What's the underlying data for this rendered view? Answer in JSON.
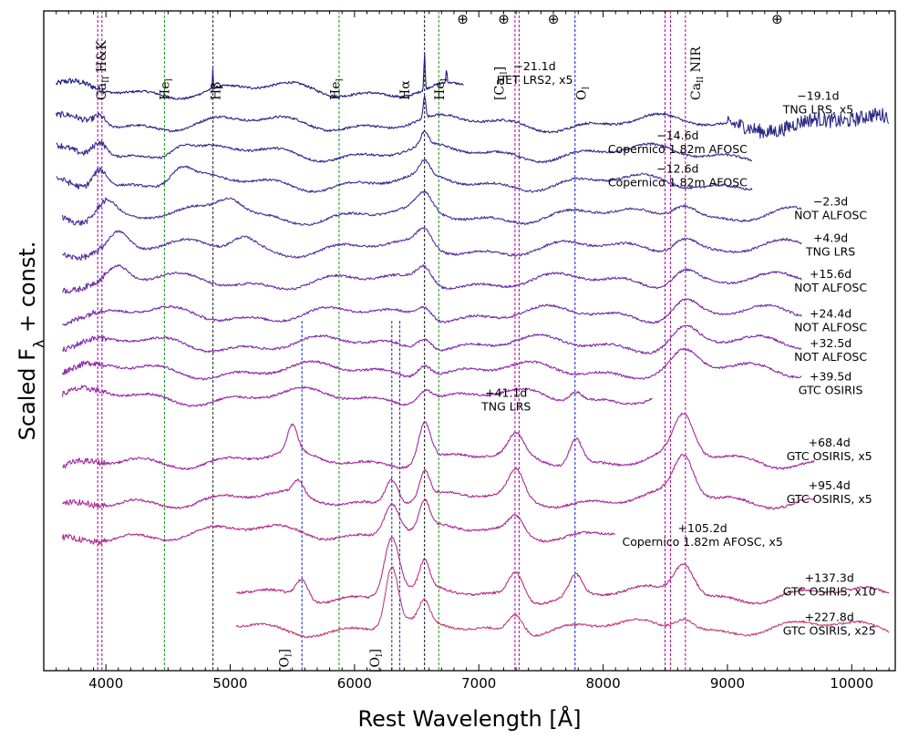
{
  "chart_data": {
    "type": "line",
    "title": "",
    "xlabel": "Rest Wavelength [Å]",
    "ylabel": "Scaled F_λ + const.",
    "xlim": [
      3500,
      10350
    ],
    "ylim": [
      0,
      100
    ],
    "xticks": [
      4000,
      5000,
      6000,
      7000,
      8000,
      9000,
      10000
    ],
    "xtick_labels": [
      "4000",
      "5000",
      "6000",
      "7000",
      "8000",
      "9000",
      "10000"
    ],
    "line_markers": [
      {
        "name": "Ca II H&K",
        "waves": [
          3934,
          3968
        ],
        "color": "#b0179b",
        "label_wave": 4000,
        "label_type": "caii_hk"
      },
      {
        "name": "He I",
        "waves": [
          4471
        ],
        "color": "#2a9d2a",
        "label_wave": 4510,
        "label_type": "hei"
      },
      {
        "name": "Hβ",
        "waves": [
          4861
        ],
        "color": "#333333",
        "label_wave": 4920,
        "label_type": "hbeta"
      },
      {
        "name": "He I",
        "waves": [
          5876
        ],
        "color": "#2a9d2a",
        "label_wave": 5880,
        "label_type": "hei"
      },
      {
        "name": "Hα",
        "waves": [
          6563
        ],
        "color": "#222222",
        "label_wave": 6440,
        "label_type": "halpha"
      },
      {
        "name": "He I",
        "waves": [
          6678
        ],
        "color": "#2a9d2a",
        "label_wave": 6720,
        "label_type": "hei"
      },
      {
        "name": "[Ca II]",
        "waves": [
          7291,
          7324
        ],
        "color": "#b0179b",
        "label_wave": 7200,
        "label_type": "caii_forb"
      },
      {
        "name": "O I",
        "waves": [
          7774
        ],
        "color": "#1f2fd0",
        "label_wave": 7860,
        "label_type": "oi"
      },
      {
        "name": "Ca II NIR",
        "waves": [
          8498,
          8542,
          8662
        ],
        "color": "#b0179b",
        "label_wave": 8780,
        "label_type": "caii_nir"
      },
      {
        "name": "[O I]",
        "waves": [
          5577
        ],
        "color": "#1f2fd0",
        "label_wave": 5470,
        "label_type": "oi_forb_bottom",
        "y_from": 53
      },
      {
        "name": "[O I]",
        "waves": [
          6300,
          6364
        ],
        "color": "#1f2fd0",
        "label_wave": 6200,
        "label_type": "oi_forb_bottom",
        "y_from": 53
      }
    ],
    "telluric_symbol": "⊕",
    "telluric_waves": [
      6870,
      7200,
      7600,
      9400
    ],
    "series": [
      {
        "name": "−21.1d",
        "instrument": "HET LRS2, x5",
        "range": [
          3600,
          6880
        ],
        "offset": 88,
        "color": "#1b1e7c",
        "label_wave": 7450,
        "label_y": 91,
        "features": [
          [
            6563,
            5.5,
            5
          ],
          [
            4861,
            3,
            3
          ],
          [
            6740,
            2,
            5
          ]
        ]
      },
      {
        "name": "−19.1d",
        "instrument": "TNG LRS, x5",
        "range": [
          3600,
          10300
        ],
        "offset": 83,
        "color": "#2b2785",
        "label_wave": 9730,
        "label_y": 86.5,
        "features": [
          [
            3950,
            1.6,
            50
          ],
          [
            6563,
            3.5,
            10
          ]
        ]
      },
      {
        "name": "−14.6d",
        "instrument": "Copernico 1.82m AFOSC",
        "range": [
          3600,
          9200
        ],
        "offset": 78.5,
        "color": "#362a8c",
        "label_wave": 8600,
        "label_y": 80.5,
        "features": [
          [
            3950,
            2.5,
            60
          ],
          [
            4600,
            1.5,
            80
          ],
          [
            6563,
            2,
            30
          ]
        ]
      },
      {
        "name": "−12.6d",
        "instrument": "Copernico 1.82m AFOSC",
        "range": [
          3600,
          9200
        ],
        "offset": 74,
        "color": "#412e92",
        "label_wave": 8600,
        "label_y": 75.5,
        "features": [
          [
            3950,
            3,
            60
          ],
          [
            4600,
            2,
            80
          ],
          [
            6563,
            2,
            40
          ]
        ]
      },
      {
        "name": "−2.3d",
        "instrument": "NOT ALFOSC",
        "range": [
          3650,
          9600
        ],
        "offset": 69,
        "color": "#4c3198",
        "label_wave": 9830,
        "label_y": 70.5,
        "features": [
          [
            4000,
            3,
            80
          ],
          [
            5000,
            2.5,
            100
          ],
          [
            6563,
            2.5,
            60
          ],
          [
            8650,
            2.5,
            100
          ]
        ]
      },
      {
        "name": "+4.9d",
        "instrument": "TNG LRS",
        "range": [
          3650,
          9600
        ],
        "offset": 64,
        "color": "#5a2f9c",
        "label_wave": 9830,
        "label_y": 65,
        "features": [
          [
            4100,
            2.5,
            80
          ],
          [
            5100,
            2,
            100
          ],
          [
            6563,
            2.5,
            60
          ],
          [
            8650,
            2.5,
            100
          ]
        ]
      },
      {
        "name": "+15.6d",
        "instrument": "NOT ALFOSC",
        "range": [
          3650,
          9600
        ],
        "offset": 59,
        "color": "#6a2ea2",
        "label_wave": 9830,
        "label_y": 59.5,
        "features": [
          [
            4100,
            2,
            80
          ],
          [
            6563,
            2.5,
            60
          ],
          [
            8650,
            2.5,
            100
          ]
        ]
      },
      {
        "name": "+24.4d",
        "instrument": "NOT ALFOSC",
        "range": [
          3650,
          9600
        ],
        "offset": 54,
        "color": "#762da6",
        "label_wave": 9830,
        "label_y": 53.5,
        "features": [
          [
            6563,
            2,
            60
          ],
          [
            8650,
            2.5,
            100
          ]
        ]
      },
      {
        "name": "+32.5d",
        "instrument": "NOT ALFOSC",
        "range": [
          3650,
          9600
        ],
        "offset": 49.5,
        "color": "#822ca9",
        "label_wave": 9830,
        "label_y": 49,
        "features": [
          [
            6563,
            2,
            60
          ],
          [
            8650,
            2.5,
            100
          ]
        ]
      },
      {
        "name": "+39.5d",
        "instrument": "GTC OSIRIS",
        "range": [
          3650,
          9600
        ],
        "offset": 45.5,
        "color": "#8c2aa8",
        "label_wave": 9830,
        "label_y": 44,
        "features": [
          [
            6563,
            2,
            60
          ],
          [
            8650,
            2.5,
            100
          ]
        ]
      },
      {
        "name": "+41.1d",
        "instrument": "TNG LRS",
        "range": [
          3650,
          8400
        ],
        "offset": 41.5,
        "color": "#952aa4",
        "label_wave": 7220,
        "label_y": 41.5,
        "features": [
          [
            6563,
            2,
            60
          ],
          [
            7780,
            1.5,
            50
          ]
        ]
      },
      {
        "name": "+68.4d",
        "instrument": "GTC OSIRIS, x5",
        "range": [
          3650,
          9700
        ],
        "offset": 32,
        "color": "#a02aa0",
        "label_wave": 9820,
        "label_y": 34,
        "features": [
          [
            5500,
            4,
            40
          ],
          [
            6563,
            6,
            50
          ],
          [
            7300,
            3,
            60
          ],
          [
            7780,
            4,
            50
          ],
          [
            8650,
            6,
            80
          ]
        ]
      },
      {
        "name": "+95.4d",
        "instrument": "GTC OSIRIS, x5",
        "range": [
          3650,
          9700
        ],
        "offset": 26,
        "color": "#a82b99",
        "label_wave": 9820,
        "label_y": 27.5,
        "features": [
          [
            5550,
            2,
            40
          ],
          [
            6300,
            4,
            50
          ],
          [
            6563,
            4,
            40
          ],
          [
            7300,
            4,
            60
          ],
          [
            8650,
            6,
            80
          ]
        ]
      },
      {
        "name": "+105.2d",
        "instrument": "Copernico 1.82m AFOSC, x5",
        "range": [
          3650,
          8100
        ],
        "offset": 21,
        "color": "#ae2d93",
        "label_wave": 8800,
        "label_y": 21,
        "features": [
          [
            6300,
            5,
            60
          ],
          [
            6563,
            4,
            40
          ],
          [
            7300,
            2.5,
            60
          ]
        ]
      },
      {
        "name": "+137.3d",
        "instrument": "GTC OSIRIS, x10",
        "range": [
          5050,
          10300
        ],
        "offset": 11.5,
        "color": "#b53087",
        "label_wave": 9820,
        "label_y": 13.5,
        "features": [
          [
            5577,
            3,
            50
          ],
          [
            6300,
            9,
            60
          ],
          [
            6563,
            4,
            40
          ],
          [
            7300,
            4,
            60
          ],
          [
            7780,
            3,
            50
          ],
          [
            8650,
            5,
            80
          ]
        ]
      },
      {
        "name": "+227.8d",
        "instrument": "GTC OSIRIS, x25",
        "range": [
          5050,
          10300
        ],
        "offset": 6.5,
        "color": "#c2407a",
        "label_wave": 9820,
        "label_y": 7.5,
        "features": [
          [
            6300,
            9,
            50
          ],
          [
            6563,
            3,
            40
          ],
          [
            7300,
            3,
            60
          ],
          [
            8650,
            2,
            80
          ]
        ]
      }
    ]
  }
}
